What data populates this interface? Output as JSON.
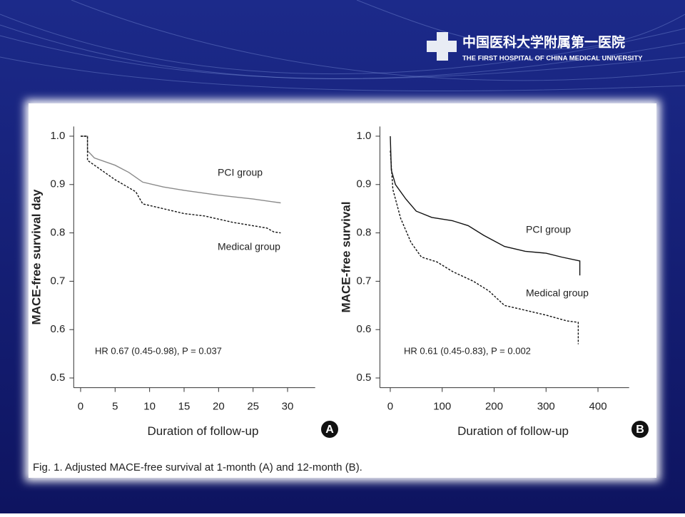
{
  "header": {
    "logo_cn": "中国医科大学附属第一医院",
    "logo_en": "THE FIRST HOSPITAL OF CHINA MEDICAL UNIVERSITY"
  },
  "caption": "Fig. 1. Adjusted MACE-free survival at 1-month (A) and 12-month (B).",
  "chart_data": [
    {
      "type": "line",
      "panel": "A",
      "x_label": "Duration of follow-up",
      "y_label": "MACE-free survival day",
      "annotation": "HR 0.67 (0.45-0.98), P = 0.037",
      "xlim": [
        -1,
        34
      ],
      "xticks": [
        0,
        5,
        10,
        15,
        20,
        25,
        30
      ],
      "ylim": [
        0.48,
        1.02
      ],
      "yticks": [
        {
          "value": 0.5,
          "label": "0.5"
        },
        {
          "value": 0.6,
          "label": "0.6"
        },
        {
          "value": 0.7,
          "label": "0.7"
        },
        {
          "value": 0.8,
          "label": "0.8"
        },
        {
          "value": 0.9,
          "label": "0.9"
        },
        {
          "value": 1,
          "label": "1.0"
        }
      ],
      "series": [
        {
          "name": "PCI group",
          "color": "#8a8a8a",
          "dashed": false,
          "x": [
            0,
            1,
            1,
            2,
            5,
            7,
            9,
            12,
            15,
            20,
            25,
            29
          ],
          "values": [
            1.0,
            1.0,
            0.97,
            0.955,
            0.94,
            0.925,
            0.905,
            0.895,
            0.888,
            0.878,
            0.87,
            0.862
          ]
        },
        {
          "name": "Medical group",
          "color": "#111111",
          "dashed": true,
          "x": [
            0,
            1,
            1,
            3,
            5,
            8,
            9,
            12,
            15,
            18,
            22,
            27,
            28,
            29
          ],
          "values": [
            1.0,
            1.0,
            0.95,
            0.93,
            0.91,
            0.885,
            0.86,
            0.85,
            0.84,
            0.835,
            0.822,
            0.81,
            0.802,
            0.8
          ]
        }
      ]
    },
    {
      "type": "line",
      "panel": "B",
      "x_label": "Duration of follow-up",
      "y_label": "MACE-free survival",
      "annotation": "HR 0.61 (0.45-0.83), P = 0.002",
      "xlim": [
        -20,
        460
      ],
      "xticks": [
        0,
        100,
        200,
        300,
        400
      ],
      "ylim": [
        0.48,
        1.02
      ],
      "yticks": [
        {
          "value": 0.5,
          "label": "0.5"
        },
        {
          "value": 0.6,
          "label": "0.6"
        },
        {
          "value": 0.7,
          "label": "0.7"
        },
        {
          "value": 0.8,
          "label": "0.8"
        },
        {
          "value": 0.9,
          "label": "0.9"
        },
        {
          "value": 1,
          "label": "1.0"
        }
      ],
      "series": [
        {
          "name": "PCI group",
          "color": "#111111",
          "dashed": false,
          "x": [
            0,
            2,
            10,
            30,
            50,
            80,
            120,
            150,
            180,
            220,
            260,
            300,
            330,
            365,
            365
          ],
          "values": [
            1.0,
            0.93,
            0.9,
            0.87,
            0.845,
            0.832,
            0.825,
            0.815,
            0.795,
            0.772,
            0.762,
            0.758,
            0.75,
            0.742,
            0.712
          ]
        },
        {
          "name": "Medical group",
          "color": "#111111",
          "dashed": true,
          "x": [
            0,
            5,
            20,
            40,
            60,
            90,
            120,
            160,
            190,
            220,
            260,
            300,
            340,
            362,
            362
          ],
          "values": [
            0.97,
            0.89,
            0.83,
            0.78,
            0.75,
            0.74,
            0.72,
            0.7,
            0.68,
            0.65,
            0.64,
            0.63,
            0.618,
            0.615,
            0.57
          ]
        }
      ]
    }
  ]
}
